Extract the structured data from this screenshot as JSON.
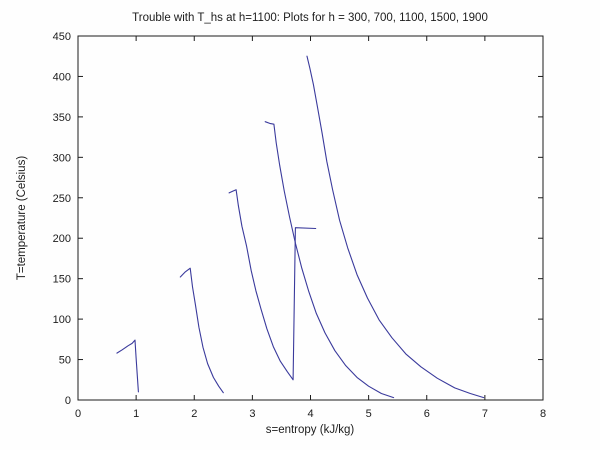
{
  "chart_data": {
    "type": "line",
    "title": "Trouble with T_hs at h=1100: Plots for h = 300, 700, 1100, 1500, 1900",
    "xlabel": "s=entropy (kJ/kg)",
    "ylabel": "T=temperature (Celsius)",
    "xlim": [
      0,
      8
    ],
    "ylim": [
      0,
      450
    ],
    "xticks": [
      0,
      1,
      2,
      3,
      4,
      5,
      6,
      7,
      8
    ],
    "yticks": [
      0,
      50,
      100,
      150,
      200,
      250,
      300,
      350,
      400,
      450
    ],
    "grid": false,
    "legend_position": "none",
    "line_color": "#3a3a9c",
    "axis_color": "#1c1c1c",
    "series": [
      {
        "name": "h=300",
        "points": [
          [
            0.67,
            58
          ],
          [
            0.76,
            62
          ],
          [
            0.86,
            67
          ],
          [
            0.93,
            70
          ],
          [
            0.98,
            74
          ],
          [
            1.0,
            52
          ],
          [
            1.02,
            30
          ],
          [
            1.04,
            10
          ]
        ]
      },
      {
        "name": "h=700",
        "points": [
          [
            1.76,
            152
          ],
          [
            1.84,
            158
          ],
          [
            1.93,
            163
          ],
          [
            1.97,
            140
          ],
          [
            2.02,
            118
          ],
          [
            2.08,
            90
          ],
          [
            2.15,
            65
          ],
          [
            2.23,
            45
          ],
          [
            2.33,
            28
          ],
          [
            2.42,
            17
          ],
          [
            2.5,
            9
          ]
        ]
      },
      {
        "name": "h=1100",
        "points": [
          [
            2.6,
            256
          ],
          [
            2.66,
            258
          ],
          [
            2.72,
            260
          ],
          [
            2.76,
            240
          ],
          [
            2.82,
            215
          ],
          [
            2.9,
            190
          ],
          [
            2.98,
            160
          ],
          [
            3.06,
            135
          ],
          [
            3.15,
            112
          ],
          [
            3.25,
            88
          ],
          [
            3.36,
            66
          ],
          [
            3.48,
            48
          ],
          [
            3.6,
            35
          ],
          [
            3.7,
            25
          ],
          [
            3.74,
            213
          ],
          [
            4.09,
            212
          ]
        ]
      },
      {
        "name": "h=1500",
        "points": [
          [
            3.22,
            344
          ],
          [
            3.3,
            342
          ],
          [
            3.37,
            341
          ],
          [
            3.41,
            318
          ],
          [
            3.47,
            290
          ],
          [
            3.55,
            258
          ],
          [
            3.64,
            226
          ],
          [
            3.74,
            194
          ],
          [
            3.85,
            163
          ],
          [
            3.97,
            134
          ],
          [
            4.1,
            107
          ],
          [
            4.25,
            83
          ],
          [
            4.42,
            61
          ],
          [
            4.6,
            43
          ],
          [
            4.8,
            28
          ],
          [
            5.0,
            17
          ],
          [
            5.22,
            8
          ],
          [
            5.43,
            3
          ]
        ]
      },
      {
        "name": "h=1900",
        "points": [
          [
            3.94,
            425
          ],
          [
            3.99,
            410
          ],
          [
            4.05,
            390
          ],
          [
            4.12,
            362
          ],
          [
            4.2,
            330
          ],
          [
            4.28,
            295
          ],
          [
            4.38,
            260
          ],
          [
            4.5,
            222
          ],
          [
            4.64,
            188
          ],
          [
            4.8,
            155
          ],
          [
            4.98,
            126
          ],
          [
            5.18,
            99
          ],
          [
            5.4,
            77
          ],
          [
            5.64,
            57
          ],
          [
            5.9,
            41
          ],
          [
            6.18,
            27
          ],
          [
            6.48,
            15
          ],
          [
            6.75,
            8
          ],
          [
            6.98,
            3
          ]
        ]
      }
    ]
  }
}
